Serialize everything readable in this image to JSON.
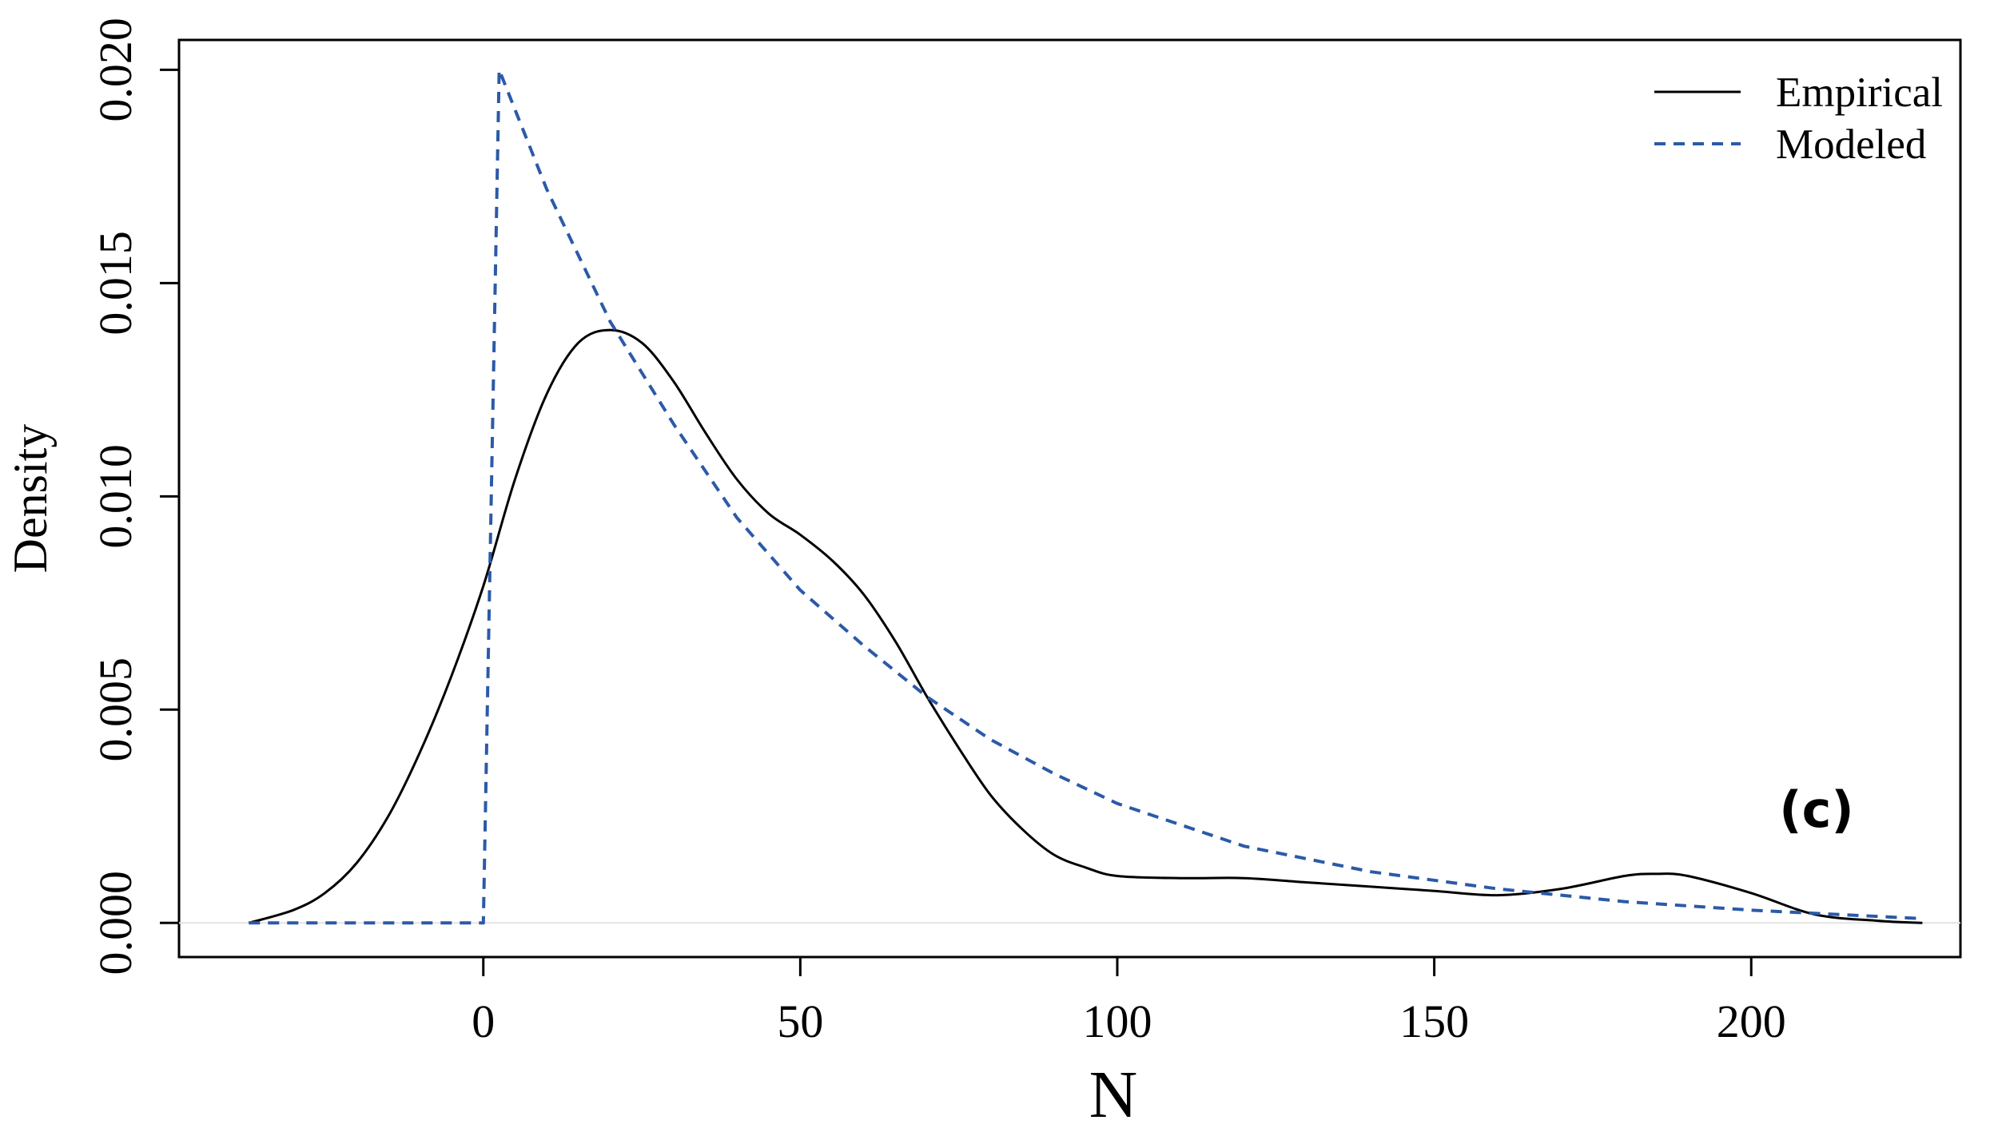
{
  "chart_data": {
    "type": "line",
    "xlabel": "N",
    "ylabel": "Density",
    "panel_label": "(c)",
    "xlim": [
      -48,
      233
    ],
    "ylim": [
      -0.0008,
      0.0207
    ],
    "x_ticks": [
      0,
      50,
      100,
      150,
      200
    ],
    "x_tick_labels": [
      "0",
      "50",
      "100",
      "150",
      "200"
    ],
    "y_ticks": [
      0.0,
      0.005,
      0.01,
      0.015,
      0.02
    ],
    "y_tick_labels": [
      "0.000",
      "0.005",
      "0.010",
      "0.015",
      "0.020"
    ],
    "grid": false,
    "legend_position": "top-right",
    "series": [
      {
        "name": "Empirical",
        "style": "solid",
        "color": "#000000",
        "x": [
          -37,
          -30,
          -25,
          -20,
          -15,
          -10,
          -5,
          0,
          5,
          10,
          15,
          20,
          25,
          30,
          35,
          40,
          45,
          50,
          55,
          60,
          65,
          70,
          75,
          80,
          85,
          90,
          95,
          100,
          110,
          120,
          130,
          140,
          150,
          160,
          170,
          180,
          185,
          190,
          200,
          210,
          220,
          227
        ],
        "y": [
          0.0,
          0.0003,
          0.0007,
          0.0014,
          0.0025,
          0.004,
          0.0058,
          0.0079,
          0.0104,
          0.0124,
          0.0136,
          0.0139,
          0.0136,
          0.0127,
          0.0115,
          0.0104,
          0.0096,
          0.0091,
          0.0085,
          0.0077,
          0.0066,
          0.0053,
          0.0041,
          0.003,
          0.0022,
          0.0016,
          0.0013,
          0.0011,
          0.00105,
          0.00105,
          0.00095,
          0.00085,
          0.00075,
          0.00065,
          0.0008,
          0.0011,
          0.00115,
          0.0011,
          0.0007,
          0.0002,
          5e-05,
          0.0
        ]
      },
      {
        "name": "Modeled",
        "style": "dashed",
        "color": "#2b5aa7",
        "x": [
          -37,
          0,
          2.5,
          10,
          20,
          30,
          40,
          50,
          60,
          70,
          80,
          90,
          100,
          120,
          140,
          160,
          180,
          200,
          227
        ],
        "y": [
          0.0,
          0.0,
          0.02,
          0.0172,
          0.0141,
          0.0117,
          0.0095,
          0.0078,
          0.0065,
          0.0053,
          0.0043,
          0.0035,
          0.0028,
          0.0018,
          0.0012,
          0.0008,
          0.0005,
          0.0003,
          0.0001
        ]
      }
    ]
  }
}
